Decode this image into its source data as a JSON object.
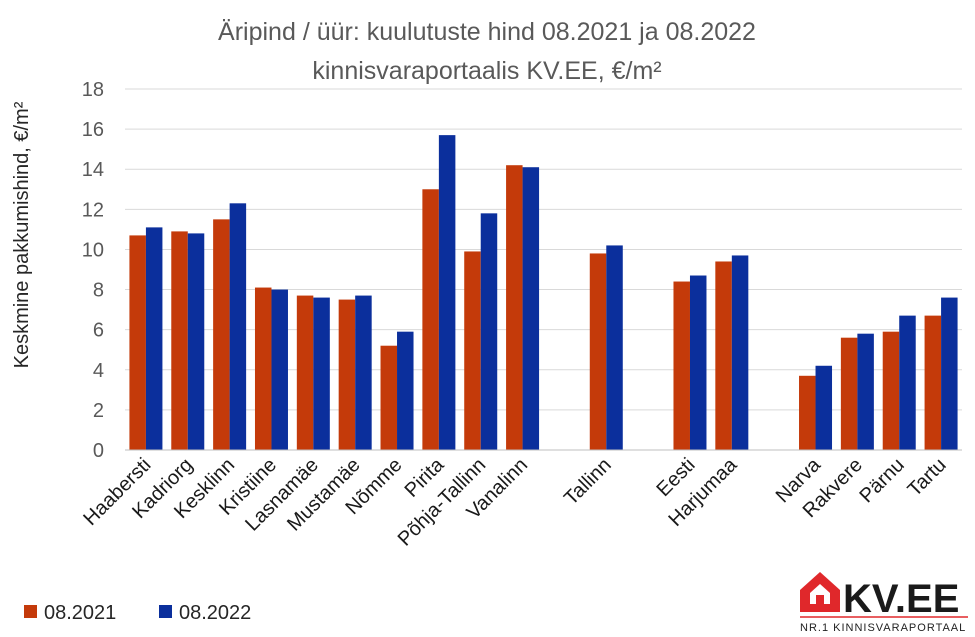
{
  "chart_data": {
    "type": "bar",
    "title": [
      "Äripind / üür: kuulutuste hind 08.2021 ja 08.2022",
      "kinnisvaraportaalis KV.EE, €/m²"
    ],
    "ylabel": "Keskmine pakkumishind, €/m²",
    "ylim": [
      0,
      18
    ],
    "yticks": [
      "0",
      "2",
      "4",
      "6",
      "8",
      "10",
      "12",
      "14",
      "16",
      "18"
    ],
    "grid": true,
    "legend_position": "bottom-left",
    "categories": [
      "Haabersti",
      "Kadriorg",
      "Kesklinn",
      "Kristiine",
      "Lasnamäe",
      "Mustamäe",
      "Nõmme",
      "Pirita",
      "Põhja-Tallinn",
      "Vanalinn",
      "",
      "Tallinn",
      "",
      "Eesti",
      "Harjumaa",
      "",
      "Narva",
      "Rakvere",
      "Pärnu",
      "Tartu"
    ],
    "series": [
      {
        "name": "08.2021",
        "color": "#c43a0a",
        "values": [
          10.7,
          10.9,
          11.5,
          8.1,
          7.7,
          7.5,
          5.2,
          13.0,
          9.9,
          14.2,
          null,
          9.8,
          null,
          8.4,
          9.4,
          null,
          3.7,
          5.6,
          5.9,
          6.7
        ]
      },
      {
        "name": "08.2022",
        "color": "#0b2f9c",
        "values": [
          11.1,
          10.8,
          12.3,
          8.0,
          7.6,
          7.7,
          5.9,
          15.7,
          11.8,
          14.1,
          null,
          10.2,
          null,
          8.7,
          9.7,
          null,
          4.2,
          5.8,
          6.7,
          7.6
        ]
      }
    ]
  },
  "logo": {
    "name": "KV.EE",
    "tagline": "NR.1 KINNISVARAPORTAAL",
    "icon": "house-icon",
    "accent_color": "#e0282b"
  }
}
